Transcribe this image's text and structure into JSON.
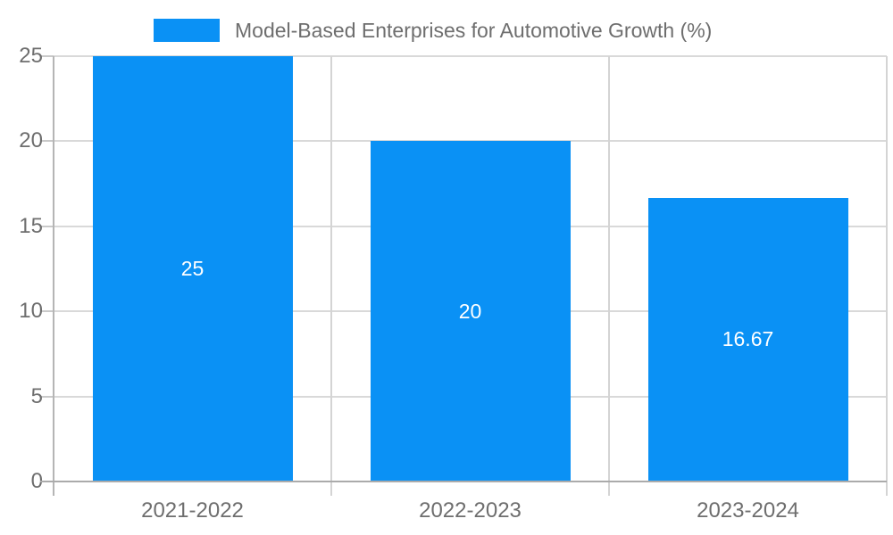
{
  "chart_data": {
    "type": "bar",
    "title": "Model-Based Enterprises for Automotive Growth (%)",
    "categories": [
      "2021-2022",
      "2022-2023",
      "2023-2024"
    ],
    "values": [
      25,
      20,
      16.67
    ],
    "value_labels": [
      "25",
      "20",
      "16.67"
    ],
    "xlabel": "",
    "ylabel": "",
    "ylim": [
      0,
      25
    ],
    "yticks": [
      0,
      5,
      10,
      15,
      20,
      25
    ],
    "grid": true,
    "legend_position": "top-center",
    "bar_color": "#0a91f5",
    "value_label_color": "#ffffff",
    "axis_text_color": "#6e6e6e"
  }
}
